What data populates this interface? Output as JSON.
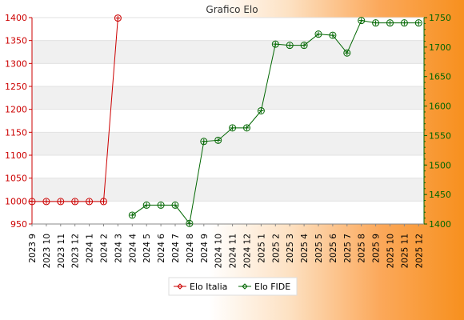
{
  "chart_data": {
    "type": "line",
    "title": "Grafico Elo",
    "categories": [
      "2023 9",
      "2023 10",
      "2023 11",
      "2023 12",
      "2024 1",
      "2024 2",
      "2024 3",
      "2024 4",
      "2024 5",
      "2024 6",
      "2024 7",
      "2024 8",
      "2024 9",
      "2024 10",
      "2024 11",
      "2024 12",
      "2025 1",
      "2025 2",
      "2025 3",
      "2025 4",
      "2025 5",
      "2025 6",
      "2025 7",
      "2025 8",
      "2025 9",
      "2025 10",
      "2025 11",
      "2025 12"
    ],
    "series": [
      {
        "name": "Elo Italia",
        "axis": "left",
        "color": "#cc0000",
        "values": [
          999,
          999,
          999,
          999,
          999,
          999,
          1399,
          null,
          null,
          null,
          null,
          null,
          null,
          null,
          null,
          null,
          null,
          null,
          null,
          null,
          null,
          null,
          null,
          null,
          null,
          null,
          null,
          null
        ]
      },
      {
        "name": "Elo FIDE",
        "axis": "right",
        "color": "#006600",
        "values": [
          null,
          null,
          null,
          null,
          null,
          null,
          null,
          1415,
          1432,
          1432,
          1432,
          1401,
          1540,
          1542,
          1563,
          1563,
          1592,
          1705,
          1703,
          1703,
          1722,
          1720,
          1690,
          1745,
          1741,
          1741,
          1741,
          1741
        ]
      }
    ],
    "y_left": {
      "min": 950,
      "max": 1400,
      "ticks": [
        950,
        1000,
        1050,
        1100,
        1150,
        1200,
        1250,
        1300,
        1350,
        1400
      ]
    },
    "y_right": {
      "min": 1400,
      "max": 1750,
      "ticks": [
        1400,
        1450,
        1500,
        1550,
        1600,
        1650,
        1700,
        1750
      ]
    },
    "grid": "horizontal bands",
    "legend_position": "bottom-center"
  }
}
